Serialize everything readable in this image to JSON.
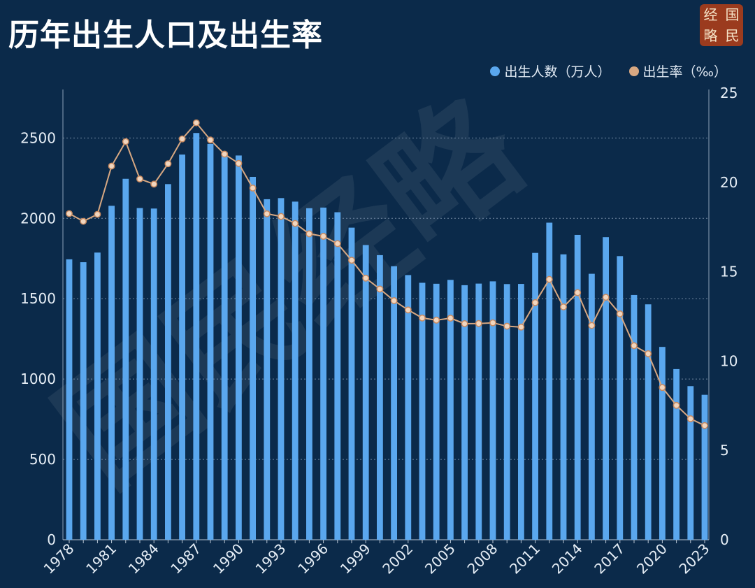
{
  "title": "历年出生人口及出生率",
  "seal": [
    "经",
    "国",
    "略",
    "民"
  ],
  "watermark": "国民经略",
  "colors": {
    "background": "#0b2a4a",
    "bar": "#5aa7ee",
    "line": "#d8a882",
    "grid": "#6f86a0"
  },
  "chart_data": {
    "type": "bar",
    "categories": [
      1978,
      1979,
      1980,
      1981,
      1982,
      1983,
      1984,
      1985,
      1986,
      1987,
      1988,
      1989,
      1990,
      1991,
      1992,
      1993,
      1994,
      1995,
      1996,
      1997,
      1998,
      1999,
      2000,
      2001,
      2002,
      2003,
      2004,
      2005,
      2006,
      2007,
      2008,
      2009,
      2010,
      2011,
      2012,
      2013,
      2014,
      2015,
      2016,
      2017,
      2018,
      2019,
      2020,
      2021,
      2022,
      2023
    ],
    "x_tick_labels": [
      "1978",
      "1981",
      "1984",
      "1987",
      "1990",
      "1993",
      "1996",
      "1999",
      "2002",
      "2005",
      "2008",
      "2011",
      "2014",
      "2017",
      "2020",
      "2023"
    ],
    "series": [
      {
        "name": "出生人数（万人）",
        "kind": "bar",
        "axis": "left",
        "color": "#5aa7ee",
        "values": [
          1745,
          1727,
          1787,
          2078,
          2246,
          2064,
          2061,
          2213,
          2397,
          2531,
          2463,
          2414,
          2391,
          2258,
          2119,
          2126,
          2104,
          2063,
          2067,
          2038,
          1942,
          1834,
          1771,
          1702,
          1647,
          1599,
          1593,
          1617,
          1584,
          1594,
          1608,
          1591,
          1592,
          1785,
          1973,
          1776,
          1897,
          1655,
          1883,
          1765,
          1523,
          1465,
          1200,
          1062,
          956,
          902
        ]
      },
      {
        "name": "出生率（‰）",
        "kind": "line",
        "axis": "right",
        "color": "#d8a882",
        "values": [
          18.25,
          17.82,
          18.21,
          20.91,
          22.28,
          20.19,
          19.9,
          21.04,
          22.43,
          23.33,
          22.37,
          21.58,
          21.06,
          19.68,
          18.24,
          18.09,
          17.7,
          17.12,
          16.98,
          16.57,
          15.64,
          14.64,
          14.03,
          13.38,
          12.86,
          12.41,
          12.29,
          12.4,
          12.09,
          12.1,
          12.14,
          11.95,
          11.9,
          13.27,
          14.57,
          13.03,
          13.83,
          11.99,
          13.57,
          12.64,
          10.86,
          10.41,
          8.52,
          7.52,
          6.77,
          6.39
        ]
      }
    ],
    "y_left": {
      "ticks": [
        0,
        500,
        1000,
        1500,
        2000,
        2500
      ],
      "range": [
        0,
        2780
      ]
    },
    "y_right": {
      "ticks": [
        0,
        5,
        10,
        15,
        20,
        25
      ],
      "range": [
        0,
        25
      ]
    },
    "grid": true,
    "legend": "top-right"
  }
}
